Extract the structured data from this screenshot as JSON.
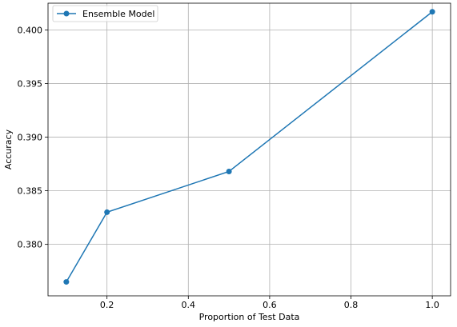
{
  "chart_data": {
    "type": "line",
    "title": "",
    "xlabel": "Proportion of Test Data",
    "ylabel": "Accuracy",
    "xlim": [
      0.055,
      1.045
    ],
    "ylim": [
      0.3752,
      0.4025
    ],
    "xticks": [
      0.2,
      0.4,
      0.6,
      0.8,
      1.0
    ],
    "xtick_labels": [
      "0.2",
      "0.4",
      "0.6",
      "0.8",
      "1.0"
    ],
    "yticks": [
      0.38,
      0.385,
      0.39,
      0.395,
      0.4
    ],
    "ytick_labels": [
      "0.380",
      "0.385",
      "0.390",
      "0.395",
      "0.400"
    ],
    "grid": true,
    "legend": "upper-left",
    "series": [
      {
        "name": "Ensemble Model",
        "color": "#1f77b4",
        "marker": "circle",
        "x": [
          0.1,
          0.2,
          0.5,
          1.0
        ],
        "y": [
          0.3765,
          0.383,
          0.3868,
          0.4017
        ]
      }
    ]
  }
}
